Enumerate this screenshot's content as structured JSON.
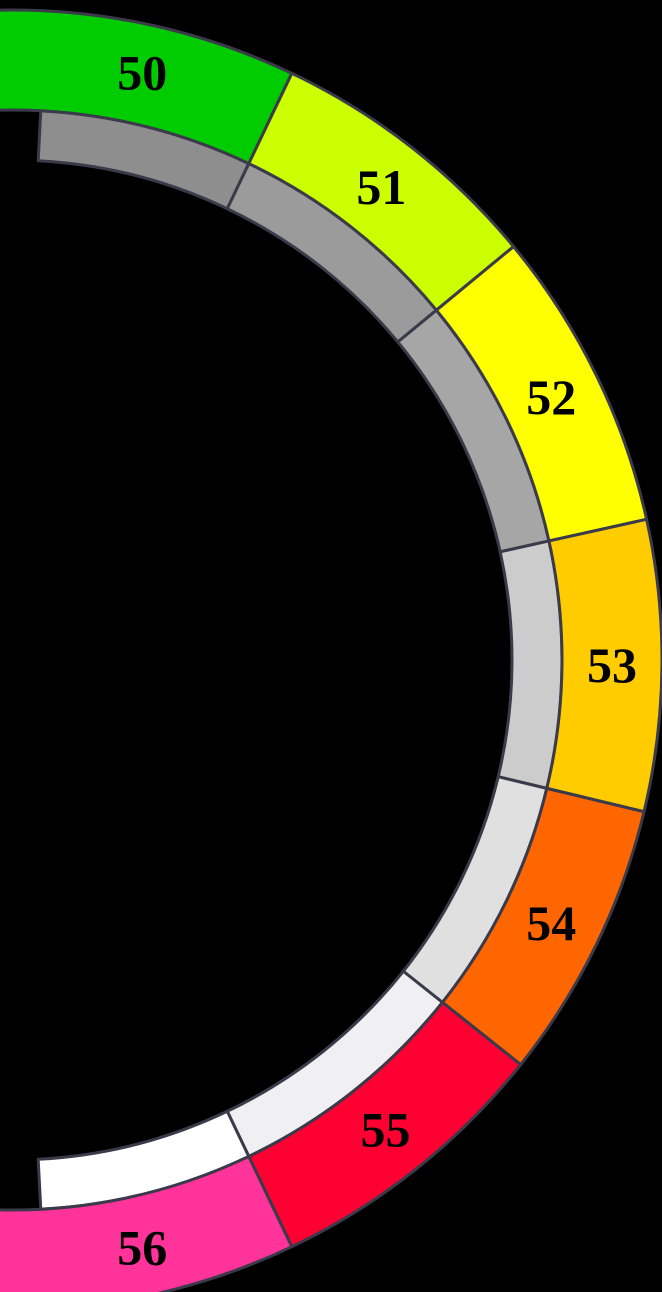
{
  "gauge": {
    "segments": [
      {
        "label": "50",
        "color": "#00CC00",
        "inner_color": "#8E8E8E"
      },
      {
        "label": "51",
        "color": "#CCFF00",
        "inner_color": "#9B9B9B"
      },
      {
        "label": "52",
        "color": "#FFFF00",
        "inner_color": "#A6A6A6"
      },
      {
        "label": "53",
        "color": "#FFCC00",
        "inner_color": "#CCCCCC"
      },
      {
        "label": "54",
        "color": "#FF6600",
        "inner_color": "#E0E0E0"
      },
      {
        "label": "55",
        "color": "#FF0033",
        "inner_color": "#F0F0F2"
      },
      {
        "label": "56",
        "color": "#FF3399",
        "inner_color": "#FFFFFF"
      }
    ],
    "outline_color": "#3A3A4A",
    "background_color": "#000000"
  }
}
